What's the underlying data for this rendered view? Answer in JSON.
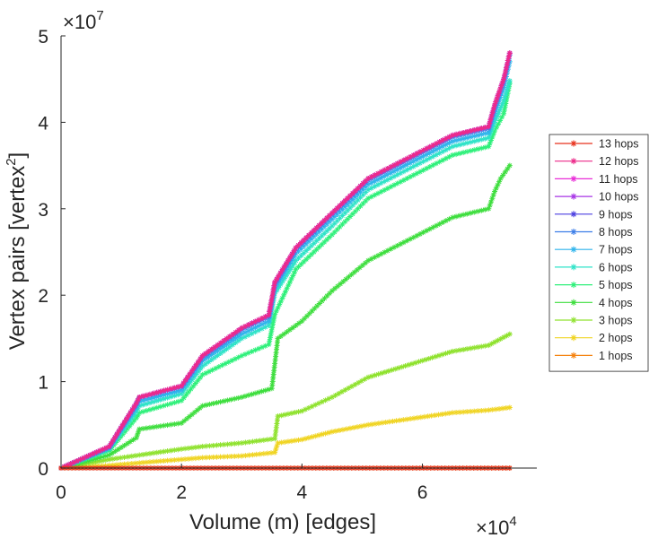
{
  "chart_data": {
    "type": "line",
    "xlabel": "Volume (m) [edges]",
    "ylabel_main": "Vertex pairs [vertex",
    "ylabel_sup": "2",
    "ylabel_close": "]",
    "x_multiplier": {
      "base": "×10",
      "exp": "4"
    },
    "y_multiplier": {
      "base": "×10",
      "exp": "7"
    },
    "xlim": [
      0,
      7.9
    ],
    "ylim": [
      0,
      5
    ],
    "xlim_units": "×10^4 edges",
    "ylim_units": "×10^7 vertex^2",
    "xticks": [
      "0",
      "2",
      "4",
      "6"
    ],
    "xtick_values": [
      0,
      2,
      4,
      6
    ],
    "yticks": [
      "0",
      "1",
      "2",
      "3",
      "4",
      "5"
    ],
    "ytick_values": [
      0,
      1,
      2,
      3,
      4,
      5
    ],
    "legend_position": "right",
    "series": [
      {
        "name": "13 hops",
        "color": "#e8311c",
        "marker": "star",
        "points": [
          [
            0,
            0
          ],
          [
            7.45,
            0
          ]
        ]
      },
      {
        "name": "12 hops",
        "color": "#ec2a8a",
        "marker": "star",
        "points": [
          [
            0,
            0
          ],
          [
            0.8,
            0.25
          ],
          [
            1.25,
            0.75
          ],
          [
            1.3,
            0.82
          ],
          [
            2,
            0.95
          ],
          [
            2.35,
            1.3
          ],
          [
            3.0,
            1.62
          ],
          [
            3.45,
            1.77
          ],
          [
            3.55,
            2.15
          ],
          [
            3.9,
            2.55
          ],
          [
            4.5,
            2.95
          ],
          [
            5.1,
            3.35
          ],
          [
            6.5,
            3.85
          ],
          [
            7.1,
            3.95
          ],
          [
            7.2,
            4.2
          ],
          [
            7.35,
            4.5
          ],
          [
            7.45,
            4.8
          ]
        ]
      },
      {
        "name": "11 hops",
        "color": "#e92ed8",
        "marker": "star",
        "points": [
          [
            0,
            0
          ],
          [
            0.8,
            0.25
          ],
          [
            1.25,
            0.75
          ],
          [
            1.3,
            0.82
          ],
          [
            2,
            0.95
          ],
          [
            2.35,
            1.3
          ],
          [
            3.0,
            1.62
          ],
          [
            3.45,
            1.77
          ],
          [
            3.55,
            2.15
          ],
          [
            3.9,
            2.55
          ],
          [
            4.5,
            2.95
          ],
          [
            5.1,
            3.35
          ],
          [
            6.5,
            3.85
          ],
          [
            7.1,
            3.95
          ],
          [
            7.2,
            4.2
          ],
          [
            7.35,
            4.5
          ],
          [
            7.45,
            4.8
          ]
        ]
      },
      {
        "name": "10 hops",
        "color": "#a735e6",
        "marker": "star",
        "points": [
          [
            0,
            0
          ],
          [
            0.8,
            0.25
          ],
          [
            1.25,
            0.75
          ],
          [
            1.3,
            0.82
          ],
          [
            2,
            0.95
          ],
          [
            2.35,
            1.3
          ],
          [
            3.0,
            1.62
          ],
          [
            3.45,
            1.77
          ],
          [
            3.55,
            2.15
          ],
          [
            3.9,
            2.55
          ],
          [
            4.5,
            2.95
          ],
          [
            5.1,
            3.35
          ],
          [
            6.5,
            3.85
          ],
          [
            7.1,
            3.95
          ],
          [
            7.2,
            4.2
          ],
          [
            7.35,
            4.5
          ],
          [
            7.45,
            4.8
          ]
        ]
      },
      {
        "name": "9 hops",
        "color": "#4b3fe0",
        "marker": "star",
        "points": [
          [
            0,
            0
          ],
          [
            0.8,
            0.25
          ],
          [
            1.25,
            0.75
          ],
          [
            1.3,
            0.82
          ],
          [
            2,
            0.95
          ],
          [
            2.35,
            1.3
          ],
          [
            3.0,
            1.62
          ],
          [
            3.45,
            1.77
          ],
          [
            3.55,
            2.15
          ],
          [
            3.9,
            2.55
          ],
          [
            4.5,
            2.95
          ],
          [
            5.1,
            3.35
          ],
          [
            6.5,
            3.85
          ],
          [
            7.1,
            3.95
          ],
          [
            7.2,
            4.2
          ],
          [
            7.35,
            4.5
          ],
          [
            7.45,
            4.8
          ]
        ]
      },
      {
        "name": "8 hops",
        "color": "#3d7ee8",
        "marker": "star",
        "points": [
          [
            0,
            0
          ],
          [
            0.8,
            0.24
          ],
          [
            1.25,
            0.74
          ],
          [
            1.3,
            0.81
          ],
          [
            2,
            0.94
          ],
          [
            2.35,
            1.28
          ],
          [
            3.0,
            1.6
          ],
          [
            3.45,
            1.75
          ],
          [
            3.55,
            2.13
          ],
          [
            3.9,
            2.53
          ],
          [
            4.5,
            2.93
          ],
          [
            5.1,
            3.33
          ],
          [
            6.5,
            3.83
          ],
          [
            7.1,
            3.93
          ],
          [
            7.2,
            4.18
          ],
          [
            7.35,
            4.48
          ],
          [
            7.45,
            4.78
          ]
        ]
      },
      {
        "name": "7 hops",
        "color": "#2fb4ec",
        "marker": "star",
        "points": [
          [
            0,
            0
          ],
          [
            0.8,
            0.23
          ],
          [
            1.25,
            0.7
          ],
          [
            1.3,
            0.77
          ],
          [
            2,
            0.9
          ],
          [
            2.35,
            1.24
          ],
          [
            3.0,
            1.55
          ],
          [
            3.45,
            1.7
          ],
          [
            3.55,
            2.08
          ],
          [
            3.9,
            2.48
          ],
          [
            4.5,
            2.88
          ],
          [
            5.1,
            3.28
          ],
          [
            6.5,
            3.78
          ],
          [
            7.1,
            3.88
          ],
          [
            7.2,
            4.1
          ],
          [
            7.35,
            4.4
          ],
          [
            7.45,
            4.7
          ]
        ]
      },
      {
        "name": "6 hops",
        "color": "#2fe3c8",
        "marker": "star",
        "points": [
          [
            0,
            0
          ],
          [
            0.8,
            0.22
          ],
          [
            1.25,
            0.65
          ],
          [
            1.3,
            0.72
          ],
          [
            2,
            0.86
          ],
          [
            2.35,
            1.18
          ],
          [
            3.0,
            1.5
          ],
          [
            3.45,
            1.65
          ],
          [
            3.55,
            2.02
          ],
          [
            3.9,
            2.4
          ],
          [
            4.5,
            2.8
          ],
          [
            5.1,
            3.22
          ],
          [
            6.5,
            3.72
          ],
          [
            7.1,
            3.82
          ],
          [
            7.2,
            4.0
          ],
          [
            7.35,
            4.25
          ],
          [
            7.45,
            4.48
          ]
        ]
      },
      {
        "name": "5 hops",
        "color": "#2ef07a",
        "marker": "star",
        "points": [
          [
            0,
            0
          ],
          [
            0.8,
            0.2
          ],
          [
            1.25,
            0.58
          ],
          [
            1.3,
            0.64
          ],
          [
            2,
            0.78
          ],
          [
            2.35,
            1.08
          ],
          [
            3.0,
            1.3
          ],
          [
            3.45,
            1.43
          ],
          [
            3.55,
            1.78
          ],
          [
            3.9,
            2.3
          ],
          [
            4.5,
            2.7
          ],
          [
            5.1,
            3.12
          ],
          [
            6.5,
            3.62
          ],
          [
            7.1,
            3.72
          ],
          [
            7.2,
            3.9
          ],
          [
            7.35,
            4.1
          ],
          [
            7.45,
            4.45
          ]
        ]
      },
      {
        "name": "4 hops",
        "color": "#3ede3e",
        "marker": "star",
        "points": [
          [
            0,
            0
          ],
          [
            0.8,
            0.15
          ],
          [
            1.25,
            0.35
          ],
          [
            1.3,
            0.45
          ],
          [
            2,
            0.52
          ],
          [
            2.35,
            0.72
          ],
          [
            3.0,
            0.82
          ],
          [
            3.5,
            0.92
          ],
          [
            3.6,
            1.5
          ],
          [
            4.0,
            1.7
          ],
          [
            4.5,
            2.05
          ],
          [
            5.1,
            2.4
          ],
          [
            6.5,
            2.9
          ],
          [
            7.1,
            3.0
          ],
          [
            7.2,
            3.2
          ],
          [
            7.3,
            3.35
          ],
          [
            7.45,
            3.5
          ]
        ]
      },
      {
        "name": "3 hops",
        "color": "#8fe22e",
        "marker": "star",
        "points": [
          [
            0,
            0
          ],
          [
            0.8,
            0.1
          ],
          [
            1.3,
            0.15
          ],
          [
            2,
            0.22
          ],
          [
            2.35,
            0.25
          ],
          [
            3.0,
            0.29
          ],
          [
            3.55,
            0.34
          ],
          [
            3.6,
            0.6
          ],
          [
            4.0,
            0.66
          ],
          [
            4.5,
            0.82
          ],
          [
            5.1,
            1.05
          ],
          [
            6.5,
            1.35
          ],
          [
            7.1,
            1.42
          ],
          [
            7.45,
            1.55
          ]
        ]
      },
      {
        "name": "2 hops",
        "color": "#f0d422",
        "marker": "star",
        "points": [
          [
            0,
            0
          ],
          [
            0.8,
            0.03
          ],
          [
            1.3,
            0.06
          ],
          [
            2,
            0.1
          ],
          [
            2.35,
            0.12
          ],
          [
            3.0,
            0.14
          ],
          [
            3.55,
            0.18
          ],
          [
            3.6,
            0.29
          ],
          [
            4.0,
            0.33
          ],
          [
            4.5,
            0.42
          ],
          [
            5.1,
            0.5
          ],
          [
            6.5,
            0.64
          ],
          [
            7.1,
            0.67
          ],
          [
            7.45,
            0.7
          ]
        ]
      },
      {
        "name": "1 hops",
        "color": "#f5820f",
        "marker": "star",
        "points": [
          [
            0,
            0
          ],
          [
            7.45,
            0
          ]
        ]
      }
    ]
  }
}
